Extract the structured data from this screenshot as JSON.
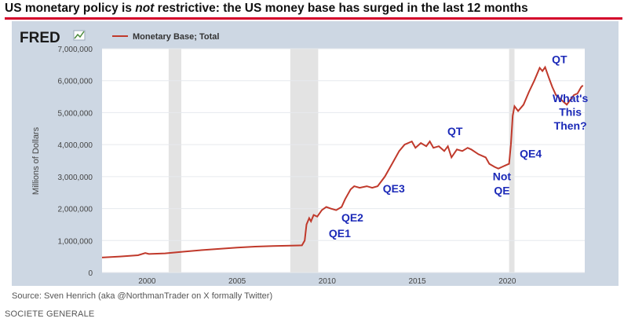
{
  "headline": {
    "pre": "US monetary policy is ",
    "emph": "not",
    "post": " restrictive: the US money base has surged in the last 12 months"
  },
  "source": "Source: Sven Henrich (aka @NorthmanTrader on X formally Twitter)",
  "footer": "SOCIETE GENERALE",
  "colors": {
    "line": "#c0392b",
    "annotation": "#1c2ab8",
    "panel": "#cdd7e3",
    "plot": "#ffffff",
    "recession": "#e3e3e3",
    "headline_rule": "#d4002a"
  },
  "chart_data": {
    "type": "line",
    "brand": "FRED",
    "legend": "Monetary Base; Total",
    "ylabel": "Millions of Dollars",
    "ylim": [
      0,
      7000000
    ],
    "xlim": [
      1997.5,
      2024.3
    ],
    "yticks": [
      0,
      1000000,
      2000000,
      3000000,
      4000000,
      5000000,
      6000000,
      7000000
    ],
    "ytick_labels": [
      "0",
      "1,000,000",
      "2,000,000",
      "3,000,000",
      "4,000,000",
      "5,000,000",
      "6,000,000",
      "7,000,000"
    ],
    "xticks": [
      2000,
      2005,
      2010,
      2015,
      2020
    ],
    "xtick_labels": [
      "2000",
      "2005",
      "2010",
      "2015",
      "2020"
    ],
    "recessions": [
      [
        2001.2,
        2001.9
      ],
      [
        2007.95,
        2009.5
      ],
      [
        2020.1,
        2020.4
      ]
    ],
    "series": [
      {
        "values": [
          [
            1997.5,
            470000
          ],
          [
            1998.5,
            500000
          ],
          [
            1999.5,
            540000
          ],
          [
            1999.9,
            610000
          ],
          [
            2000.1,
            580000
          ],
          [
            2001.0,
            600000
          ],
          [
            2002.0,
            650000
          ],
          [
            2003.0,
            700000
          ],
          [
            2004.0,
            740000
          ],
          [
            2005.0,
            780000
          ],
          [
            2006.0,
            810000
          ],
          [
            2007.0,
            830000
          ],
          [
            2008.0,
            840000
          ],
          [
            2008.6,
            850000
          ],
          [
            2008.75,
            1000000
          ],
          [
            2008.85,
            1500000
          ],
          [
            2009.0,
            1700000
          ],
          [
            2009.1,
            1600000
          ],
          [
            2009.25,
            1800000
          ],
          [
            2009.45,
            1750000
          ],
          [
            2009.7,
            1950000
          ],
          [
            2009.95,
            2050000
          ],
          [
            2010.2,
            2000000
          ],
          [
            2010.5,
            1950000
          ],
          [
            2010.8,
            2050000
          ],
          [
            2011.0,
            2300000
          ],
          [
            2011.3,
            2600000
          ],
          [
            2011.5,
            2700000
          ],
          [
            2011.8,
            2650000
          ],
          [
            2012.2,
            2700000
          ],
          [
            2012.5,
            2650000
          ],
          [
            2012.8,
            2700000
          ],
          [
            2013.2,
            3000000
          ],
          [
            2013.6,
            3400000
          ],
          [
            2014.0,
            3800000
          ],
          [
            2014.3,
            4000000
          ],
          [
            2014.7,
            4100000
          ],
          [
            2014.9,
            3900000
          ],
          [
            2015.2,
            4050000
          ],
          [
            2015.5,
            3950000
          ],
          [
            2015.7,
            4100000
          ],
          [
            2015.9,
            3900000
          ],
          [
            2016.2,
            3950000
          ],
          [
            2016.5,
            3800000
          ],
          [
            2016.7,
            3950000
          ],
          [
            2016.9,
            3600000
          ],
          [
            2017.2,
            3850000
          ],
          [
            2017.5,
            3800000
          ],
          [
            2017.8,
            3900000
          ],
          [
            2018.0,
            3850000
          ],
          [
            2018.4,
            3700000
          ],
          [
            2018.8,
            3600000
          ],
          [
            2019.0,
            3400000
          ],
          [
            2019.3,
            3300000
          ],
          [
            2019.5,
            3250000
          ],
          [
            2019.7,
            3300000
          ],
          [
            2019.9,
            3350000
          ],
          [
            2020.1,
            3400000
          ],
          [
            2020.2,
            4000000
          ],
          [
            2020.3,
            4900000
          ],
          [
            2020.4,
            5200000
          ],
          [
            2020.6,
            5050000
          ],
          [
            2020.9,
            5250000
          ],
          [
            2021.2,
            5650000
          ],
          [
            2021.5,
            6000000
          ],
          [
            2021.8,
            6400000
          ],
          [
            2021.95,
            6300000
          ],
          [
            2022.1,
            6420000
          ],
          [
            2022.3,
            6100000
          ],
          [
            2022.5,
            5800000
          ],
          [
            2022.7,
            5550000
          ],
          [
            2022.9,
            5450000
          ],
          [
            2023.1,
            5350000
          ],
          [
            2023.3,
            5250000
          ],
          [
            2023.5,
            5400000
          ],
          [
            2023.7,
            5550000
          ],
          [
            2023.9,
            5600000
          ],
          [
            2024.1,
            5800000
          ],
          [
            2024.2,
            5850000
          ]
        ]
      }
    ],
    "annotations": [
      {
        "text": "QE1",
        "x": 2010.7,
        "y": 1100000
      },
      {
        "text": "QE2",
        "x": 2011.4,
        "y": 1600000
      },
      {
        "text": "QE3",
        "x": 2013.7,
        "y": 2500000
      },
      {
        "text": "QT",
        "x": 2017.1,
        "y": 4300000
      },
      {
        "text": "Not",
        "x": 2019.7,
        "y": 2880000
      },
      {
        "text": "QE",
        "x": 2019.7,
        "y": 2440000
      },
      {
        "text": "QE4",
        "x": 2021.3,
        "y": 3600000
      },
      {
        "text": "QT",
        "x": 2022.9,
        "y": 6550000
      },
      {
        "text": "What's",
        "x": 2023.5,
        "y": 5330000
      },
      {
        "text": "This",
        "x": 2023.5,
        "y": 4900000
      },
      {
        "text": "Then?",
        "x": 2023.5,
        "y": 4470000
      }
    ]
  }
}
